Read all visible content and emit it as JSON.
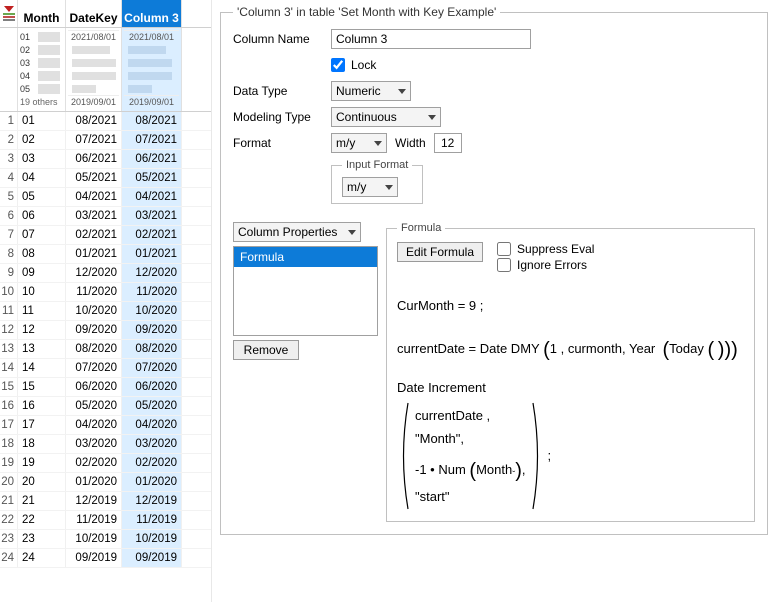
{
  "panel": {
    "title": "'Column 3' in table 'Set Month with Key Example'",
    "columnName_label": "Column Name",
    "columnName_value": "Column 3",
    "lock_label": "Lock",
    "lock_checked": true,
    "dataType_label": "Data Type",
    "dataType_value": "Numeric",
    "modelingType_label": "Modeling Type",
    "modelingType_value": "Continuous",
    "format_label": "Format",
    "format_value": "m/y",
    "width_label": "Width",
    "width_value": "12",
    "inputFormat_legend": "Input Format",
    "inputFormat_value": "m/y"
  },
  "properties": {
    "dropdown_label": "Column Properties",
    "list_item": "Formula",
    "remove_label": "Remove"
  },
  "formula": {
    "legend": "Formula",
    "editFormula_label": "Edit Formula",
    "suppressEval_label": "Suppress Eval",
    "ignoreErrors_label": "Ignore Errors",
    "line1": "CurMonth = 9 ;",
    "line2_pre": "currentDate = Date DMY ",
    "line2_args": "1 , curmonth, Year ",
    "line2_today": "Today",
    "line3_head": "Date Increment",
    "brk1": "currentDate ,",
    "brk2": "\"Month\",",
    "brk3_pre": "-1 • Num ",
    "brk3_arg": "Month",
    "brk3_post": ",",
    "brk4": "\"start\""
  },
  "grid": {
    "header_month": "Month",
    "header_datekey": "DateKey",
    "header_col3": "Column 3",
    "summary_labels": [
      "01",
      "02",
      "03",
      "04",
      "05"
    ],
    "summary_others": "19 others",
    "summary_date_top": "2021/08/01",
    "summary_date_bot": "2019/09/01",
    "rows": [
      {
        "n": "1",
        "m": "01",
        "dk": "08/2021",
        "c3": "08/2021"
      },
      {
        "n": "2",
        "m": "02",
        "dk": "07/2021",
        "c3": "07/2021"
      },
      {
        "n": "3",
        "m": "03",
        "dk": "06/2021",
        "c3": "06/2021"
      },
      {
        "n": "4",
        "m": "04",
        "dk": "05/2021",
        "c3": "05/2021"
      },
      {
        "n": "5",
        "m": "05",
        "dk": "04/2021",
        "c3": "04/2021"
      },
      {
        "n": "6",
        "m": "06",
        "dk": "03/2021",
        "c3": "03/2021"
      },
      {
        "n": "7",
        "m": "07",
        "dk": "02/2021",
        "c3": "02/2021"
      },
      {
        "n": "8",
        "m": "08",
        "dk": "01/2021",
        "c3": "01/2021"
      },
      {
        "n": "9",
        "m": "09",
        "dk": "12/2020",
        "c3": "12/2020"
      },
      {
        "n": "10",
        "m": "10",
        "dk": "11/2020",
        "c3": "11/2020"
      },
      {
        "n": "11",
        "m": "11",
        "dk": "10/2020",
        "c3": "10/2020"
      },
      {
        "n": "12",
        "m": "12",
        "dk": "09/2020",
        "c3": "09/2020"
      },
      {
        "n": "13",
        "m": "13",
        "dk": "08/2020",
        "c3": "08/2020"
      },
      {
        "n": "14",
        "m": "14",
        "dk": "07/2020",
        "c3": "07/2020"
      },
      {
        "n": "15",
        "m": "15",
        "dk": "06/2020",
        "c3": "06/2020"
      },
      {
        "n": "16",
        "m": "16",
        "dk": "05/2020",
        "c3": "05/2020"
      },
      {
        "n": "17",
        "m": "17",
        "dk": "04/2020",
        "c3": "04/2020"
      },
      {
        "n": "18",
        "m": "18",
        "dk": "03/2020",
        "c3": "03/2020"
      },
      {
        "n": "19",
        "m": "19",
        "dk": "02/2020",
        "c3": "02/2020"
      },
      {
        "n": "20",
        "m": "20",
        "dk": "01/2020",
        "c3": "01/2020"
      },
      {
        "n": "21",
        "m": "21",
        "dk": "12/2019",
        "c3": "12/2019"
      },
      {
        "n": "22",
        "m": "22",
        "dk": "11/2019",
        "c3": "11/2019"
      },
      {
        "n": "23",
        "m": "23",
        "dk": "10/2019",
        "c3": "10/2019"
      },
      {
        "n": "24",
        "m": "24",
        "dk": "09/2019",
        "c3": "09/2019"
      }
    ]
  },
  "colors": {
    "selection_header": "#0d7bd8",
    "selection_cell": "#dbeeff",
    "border": "#c0c0c0"
  }
}
